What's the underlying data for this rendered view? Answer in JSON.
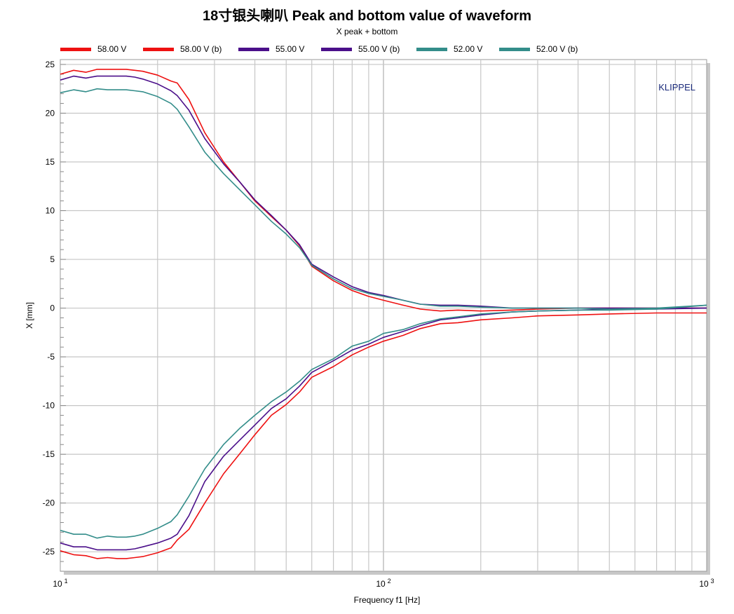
{
  "chart_data": {
    "type": "line",
    "title": "18寸银头喇叭 Peak and bottom value of waveform",
    "subtitle": "X  peak + bottom",
    "xlabel": "Frequency f1  [Hz]",
    "ylabel": "X  [mm]",
    "xscale": "log",
    "xlim": [
      10,
      1000
    ],
    "ylim": [
      -27,
      25.5
    ],
    "grid": true,
    "legend_position": "top",
    "watermark": "KLIPPEL",
    "yticks": [
      "25",
      "20",
      "15",
      "10",
      "5",
      "0",
      "-5",
      "-10",
      "-15",
      "-20",
      "-25"
    ],
    "xticks": [
      {
        "base": "10",
        "exp": "1"
      },
      {
        "base": "10",
        "exp": "2"
      },
      {
        "base": "10",
        "exp": "3"
      }
    ],
    "series": [
      {
        "name": "58.00 V",
        "color": "#ee1111",
        "x": [
          10,
          11,
          12,
          13,
          14,
          15,
          16,
          17,
          18,
          20,
          22,
          23,
          25,
          28,
          32,
          36,
          40,
          45,
          50,
          55,
          60,
          70,
          80,
          90,
          100,
          115,
          130,
          150,
          170,
          200,
          250,
          300,
          400,
          500,
          700,
          1000
        ],
        "y": [
          24.0,
          24.4,
          24.2,
          24.5,
          24.5,
          24.5,
          24.5,
          24.4,
          24.3,
          23.9,
          23.3,
          23.1,
          21.4,
          18.0,
          15.0,
          12.9,
          11.0,
          9.4,
          8.0,
          6.4,
          4.3,
          2.8,
          1.8,
          1.2,
          0.8,
          0.3,
          -0.1,
          -0.3,
          -0.2,
          -0.3,
          -0.2,
          -0.1,
          0.0,
          0.0,
          0.0,
          0.0
        ]
      },
      {
        "name": "58.00 V (b)",
        "color": "#ee1111",
        "x": [
          10,
          11,
          12,
          13,
          14,
          15,
          16,
          17,
          18,
          20,
          22,
          23,
          25,
          28,
          32,
          36,
          40,
          45,
          50,
          55,
          60,
          70,
          80,
          90,
          100,
          115,
          130,
          150,
          170,
          200,
          250,
          300,
          400,
          500,
          700,
          1000
        ],
        "y": [
          -24.9,
          -25.3,
          -25.4,
          -25.7,
          -25.6,
          -25.7,
          -25.7,
          -25.6,
          -25.5,
          -25.1,
          -24.6,
          -23.8,
          -22.7,
          -20.0,
          -17.0,
          -14.9,
          -13.0,
          -11.0,
          -9.9,
          -8.6,
          -7.1,
          -6.0,
          -4.8,
          -4.0,
          -3.4,
          -2.8,
          -2.1,
          -1.6,
          -1.5,
          -1.2,
          -1.0,
          -0.8,
          -0.7,
          -0.6,
          -0.5,
          -0.5
        ]
      },
      {
        "name": "55.00 V",
        "color": "#4b0f8a",
        "x": [
          10,
          11,
          12,
          13,
          14,
          15,
          16,
          17,
          18,
          20,
          22,
          23,
          25,
          28,
          32,
          36,
          40,
          45,
          50,
          55,
          60,
          70,
          80,
          90,
          100,
          115,
          130,
          150,
          170,
          200,
          250,
          300,
          400,
          500,
          700,
          1000
        ],
        "y": [
          23.4,
          23.8,
          23.6,
          23.8,
          23.8,
          23.8,
          23.8,
          23.7,
          23.5,
          23.0,
          22.3,
          21.8,
          20.3,
          17.4,
          14.8,
          12.9,
          11.1,
          9.5,
          8.0,
          6.5,
          4.5,
          3.2,
          2.2,
          1.6,
          1.3,
          0.8,
          0.4,
          0.3,
          0.3,
          0.2,
          0.0,
          0.0,
          0.0,
          0.0,
          0.0,
          0.0
        ]
      },
      {
        "name": "55.00 V (b)",
        "color": "#4b0f8a",
        "x": [
          10,
          11,
          12,
          13,
          14,
          15,
          16,
          17,
          18,
          20,
          22,
          23,
          25,
          28,
          32,
          36,
          40,
          45,
          50,
          55,
          60,
          70,
          80,
          90,
          100,
          115,
          130,
          150,
          170,
          200,
          250,
          300,
          400,
          500,
          700,
          1000
        ],
        "y": [
          -24.1,
          -24.5,
          -24.5,
          -24.8,
          -24.8,
          -24.8,
          -24.8,
          -24.7,
          -24.5,
          -24.1,
          -23.6,
          -23.2,
          -21.3,
          -17.8,
          -15.2,
          -13.5,
          -12.0,
          -10.3,
          -9.3,
          -8.0,
          -6.6,
          -5.4,
          -4.3,
          -3.7,
          -3.0,
          -2.4,
          -1.8,
          -1.2,
          -1.0,
          -0.7,
          -0.4,
          -0.3,
          -0.2,
          -0.1,
          -0.1,
          0.0
        ]
      },
      {
        "name": "52.00 V",
        "color": "#338d8a",
        "x": [
          10,
          11,
          12,
          13,
          14,
          15,
          16,
          17,
          18,
          20,
          22,
          23,
          25,
          28,
          32,
          36,
          40,
          45,
          50,
          55,
          60,
          70,
          80,
          90,
          100,
          115,
          130,
          150,
          170,
          200,
          250,
          300,
          400,
          500,
          700,
          1000
        ],
        "y": [
          22.1,
          22.4,
          22.2,
          22.5,
          22.4,
          22.4,
          22.4,
          22.3,
          22.2,
          21.7,
          21.0,
          20.4,
          18.6,
          16.0,
          13.8,
          12.1,
          10.6,
          8.9,
          7.6,
          6.2,
          4.4,
          3.0,
          2.0,
          1.5,
          1.2,
          0.8,
          0.4,
          0.2,
          0.2,
          0.1,
          0.0,
          0.0,
          0.0,
          -0.1,
          0.0,
          0.3
        ]
      },
      {
        "name": "52.00 V (b)",
        "color": "#338d8a",
        "x": [
          10,
          11,
          12,
          13,
          14,
          15,
          16,
          17,
          18,
          20,
          22,
          23,
          25,
          28,
          32,
          36,
          40,
          45,
          50,
          55,
          60,
          70,
          80,
          90,
          100,
          115,
          130,
          150,
          170,
          200,
          250,
          300,
          400,
          500,
          700,
          1000
        ],
        "y": [
          -22.8,
          -23.2,
          -23.2,
          -23.6,
          -23.4,
          -23.5,
          -23.5,
          -23.4,
          -23.2,
          -22.6,
          -21.9,
          -21.2,
          -19.3,
          -16.5,
          -14.0,
          -12.3,
          -11.0,
          -9.6,
          -8.6,
          -7.5,
          -6.3,
          -5.2,
          -3.9,
          -3.4,
          -2.6,
          -2.2,
          -1.6,
          -1.1,
          -0.9,
          -0.6,
          -0.4,
          -0.3,
          -0.2,
          -0.2,
          -0.1,
          0.3
        ]
      }
    ]
  }
}
